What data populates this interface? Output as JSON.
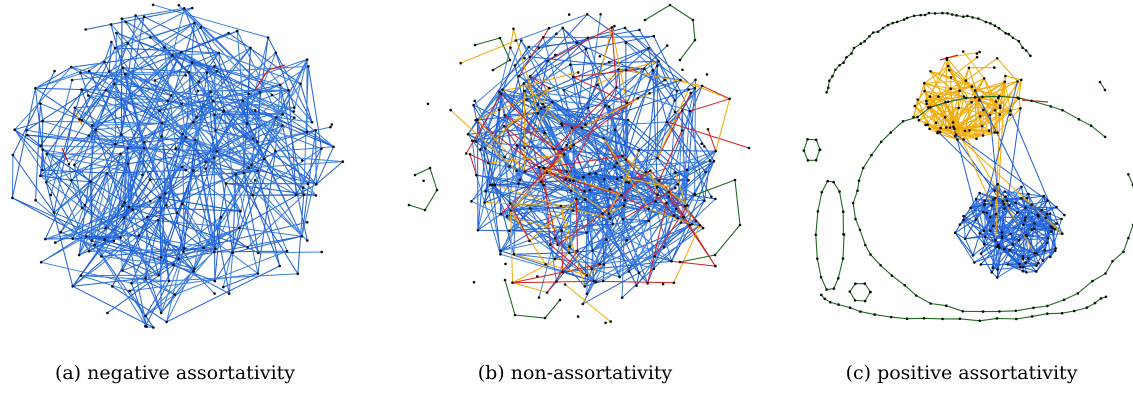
{
  "figure": {
    "panels": [
      {
        "id": "a",
        "caption": "(a) negative assortativity",
        "seed": 11,
        "style": "hairball",
        "group_colors": [
          "#1f5fd6",
          "#3b7fe0"
        ],
        "accent_colors": [
          "#d62020",
          "#f2a900"
        ]
      },
      {
        "id": "b",
        "caption": "(b) non-assortativity",
        "seed": 23,
        "style": "mixed",
        "group_colors": [
          "#1f5fd6",
          "#3b7fe0"
        ],
        "accent_colors": [
          "#d62020",
          "#f2a900",
          "#1e6b1e"
        ]
      },
      {
        "id": "c",
        "caption": "(c) positive assortativity",
        "seed": 37,
        "style": "clusters",
        "group_colors": [
          "#1f5fd6",
          "#f2a900",
          "#1e6b1e",
          "#d62020"
        ]
      }
    ],
    "node_color": "#0a0a0a"
  }
}
